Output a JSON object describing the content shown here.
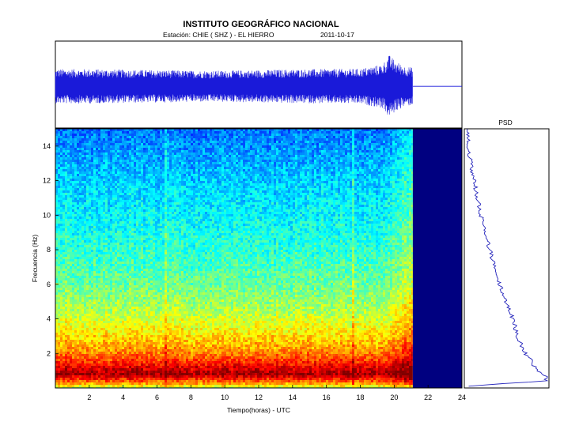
{
  "header": {
    "title": "INSTITUTO GEOGRÁFICO NACIONAL",
    "station": "Estación:  CHIE ( SHZ ) - EL HIERRO",
    "date": "2011-10-17"
  },
  "psd": {
    "title": "PSD"
  },
  "colors": {
    "trace": "#1a1ad9",
    "no_data": "#000080",
    "psd_line": "#2222bb",
    "frame": "#000000"
  },
  "chart_data": [
    {
      "type": "line",
      "description_role": "seismogram",
      "x_unit": "hours UTC",
      "xlim": [
        0,
        24
      ],
      "data_end_hour": 21.1,
      "series": [
        {
          "values_envelope": [
            {
              "x": 0.0,
              "amp": 0.55
            },
            {
              "x": 2.0,
              "amp": 0.55
            },
            {
              "x": 4.0,
              "amp": 0.53
            },
            {
              "x": 6.0,
              "amp": 0.52
            },
            {
              "x": 8.0,
              "amp": 0.5
            },
            {
              "x": 10.0,
              "amp": 0.5
            },
            {
              "x": 12.0,
              "amp": 0.52
            },
            {
              "x": 14.0,
              "amp": 0.54
            },
            {
              "x": 16.0,
              "amp": 0.55
            },
            {
              "x": 18.0,
              "amp": 0.56
            },
            {
              "x": 19.3,
              "amp": 0.7
            },
            {
              "x": 19.7,
              "amp": 1.0
            },
            {
              "x": 20.1,
              "amp": 0.8
            },
            {
              "x": 20.6,
              "amp": 0.65
            },
            {
              "x": 21.1,
              "amp": 0.6
            }
          ]
        }
      ]
    },
    {
      "type": "heatmap",
      "description_role": "spectrogram",
      "xlabel": "Tiempo(horas) - UTC",
      "ylabel": "Frecuencia  (Hz)",
      "xlim": [
        0,
        24
      ],
      "ylim": [
        0,
        15
      ],
      "xticks": [
        2,
        4,
        6,
        8,
        10,
        12,
        14,
        16,
        18,
        20,
        22,
        24
      ],
      "yticks": [
        2,
        4,
        6,
        8,
        10,
        12,
        14
      ],
      "data_end_hour": 21.1,
      "colormap": "jet",
      "energy_by_frequency": [
        {
          "f": 0.0,
          "level": 0.55
        },
        {
          "f": 0.3,
          "level": 0.75
        },
        {
          "f": 0.8,
          "level": 0.97
        },
        {
          "f": 1.3,
          "level": 0.88
        },
        {
          "f": 1.8,
          "level": 0.78
        },
        {
          "f": 2.5,
          "level": 0.7
        },
        {
          "f": 3.5,
          "level": 0.62
        },
        {
          "f": 4.5,
          "level": 0.55
        },
        {
          "f": 6.0,
          "level": 0.48
        },
        {
          "f": 8.0,
          "level": 0.42
        },
        {
          "f": 10.0,
          "level": 0.37
        },
        {
          "f": 12.0,
          "level": 0.33
        },
        {
          "f": 14.0,
          "level": 0.27
        },
        {
          "f": 15.0,
          "level": 0.24
        }
      ],
      "late_enhancement": {
        "from_hour": 19.3,
        "to_hour": 21.1,
        "boost": 0.12
      }
    },
    {
      "type": "line",
      "title": "PSD",
      "description_role": "power spectral density",
      "ylim": [
        0,
        15
      ],
      "series": [
        {
          "points": [
            {
              "f": 0.1,
              "p": 0.05
            },
            {
              "f": 0.2,
              "p": 0.3
            },
            {
              "f": 0.4,
              "p": 0.97
            },
            {
              "f": 0.6,
              "p": 1.0
            },
            {
              "f": 0.9,
              "p": 0.9
            },
            {
              "f": 1.2,
              "p": 0.85
            },
            {
              "f": 1.6,
              "p": 0.8
            },
            {
              "f": 2.0,
              "p": 0.73
            },
            {
              "f": 3.0,
              "p": 0.64
            },
            {
              "f": 4.0,
              "p": 0.58
            },
            {
              "f": 5.0,
              "p": 0.5
            },
            {
              "f": 6.0,
              "p": 0.42
            },
            {
              "f": 7.0,
              "p": 0.36
            },
            {
              "f": 8.0,
              "p": 0.3
            },
            {
              "f": 9.0,
              "p": 0.24
            },
            {
              "f": 10.0,
              "p": 0.19
            },
            {
              "f": 11.0,
              "p": 0.15
            },
            {
              "f": 12.0,
              "p": 0.11
            },
            {
              "f": 13.0,
              "p": 0.07
            },
            {
              "f": 14.0,
              "p": 0.04
            },
            {
              "f": 15.0,
              "p": 0.02
            }
          ]
        }
      ]
    }
  ]
}
